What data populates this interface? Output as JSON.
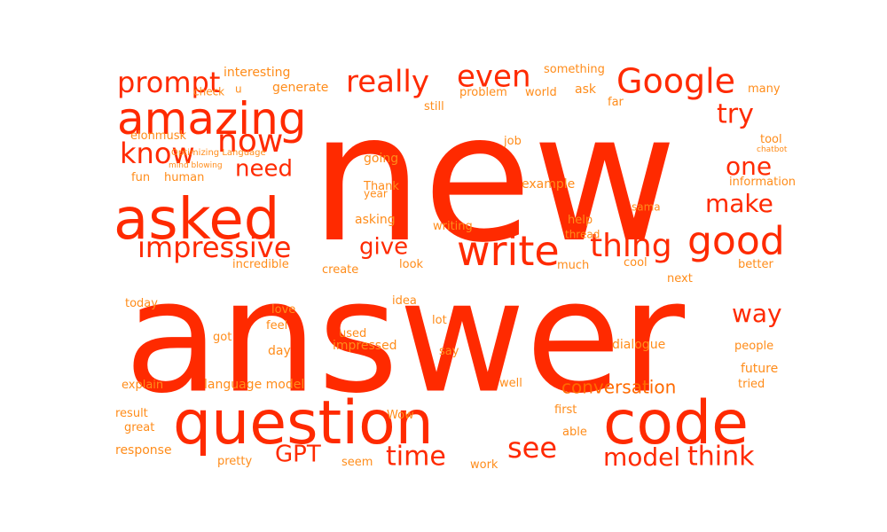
{
  "palette": {
    "primary": "#ff2a00",
    "secondary": "#ff6a00",
    "tertiary": "#ff8c1a"
  },
  "words": [
    {
      "text": "new",
      "tier": "primary"
    },
    {
      "text": "answer",
      "tier": "primary"
    },
    {
      "text": "question",
      "tier": "primary"
    },
    {
      "text": "code",
      "tier": "primary"
    },
    {
      "text": "asked",
      "tier": "primary"
    },
    {
      "text": "amazing",
      "tier": "primary"
    },
    {
      "text": "write",
      "tier": "primary"
    },
    {
      "text": "good",
      "tier": "primary"
    },
    {
      "text": "Google",
      "tier": "primary"
    },
    {
      "text": "really",
      "tier": "primary"
    },
    {
      "text": "even",
      "tier": "primary"
    },
    {
      "text": "prompt",
      "tier": "primary"
    },
    {
      "text": "impressive",
      "tier": "primary"
    },
    {
      "text": "thing",
      "tier": "primary"
    },
    {
      "text": "now",
      "tier": "primary"
    },
    {
      "text": "know",
      "tier": "primary"
    },
    {
      "text": "try",
      "tier": "primary"
    },
    {
      "text": "one",
      "tier": "primary"
    },
    {
      "text": "make",
      "tier": "primary"
    },
    {
      "text": "need",
      "tier": "primary"
    },
    {
      "text": "give",
      "tier": "primary"
    },
    {
      "text": "way",
      "tier": "primary"
    },
    {
      "text": "see",
      "tier": "primary"
    },
    {
      "text": "time",
      "tier": "primary"
    },
    {
      "text": "model",
      "tier": "primary"
    },
    {
      "text": "think",
      "tier": "primary"
    },
    {
      "text": "GPT",
      "tier": "primary"
    },
    {
      "text": "conversation",
      "tier": "secondary"
    },
    {
      "text": "interesting",
      "tier": "tertiary"
    },
    {
      "text": "something",
      "tier": "tertiary"
    },
    {
      "text": "check",
      "tier": "tertiary"
    },
    {
      "text": "u",
      "tier": "tertiary"
    },
    {
      "text": "generate",
      "tier": "tertiary"
    },
    {
      "text": "problem",
      "tier": "tertiary"
    },
    {
      "text": "world",
      "tier": "tertiary"
    },
    {
      "text": "ask",
      "tier": "tertiary"
    },
    {
      "text": "many",
      "tier": "tertiary"
    },
    {
      "text": "still",
      "tier": "tertiary"
    },
    {
      "text": "far",
      "tier": "tertiary"
    },
    {
      "text": "elonmusk",
      "tier": "tertiary"
    },
    {
      "text": "Optimizing Language",
      "tier": "tertiary"
    },
    {
      "text": "mind blowing",
      "tier": "tertiary"
    },
    {
      "text": "job",
      "tier": "tertiary"
    },
    {
      "text": "tool",
      "tier": "tertiary"
    },
    {
      "text": "chatbot",
      "tier": "tertiary"
    },
    {
      "text": "fun",
      "tier": "tertiary"
    },
    {
      "text": "human",
      "tier": "tertiary"
    },
    {
      "text": "going",
      "tier": "tertiary"
    },
    {
      "text": "Thank",
      "tier": "tertiary"
    },
    {
      "text": "year",
      "tier": "tertiary"
    },
    {
      "text": "example",
      "tier": "tertiary"
    },
    {
      "text": "information",
      "tier": "tertiary"
    },
    {
      "text": "sama",
      "tier": "tertiary"
    },
    {
      "text": "asking",
      "tier": "tertiary"
    },
    {
      "text": "writing",
      "tier": "tertiary"
    },
    {
      "text": "help",
      "tier": "tertiary"
    },
    {
      "text": "thread",
      "tier": "tertiary"
    },
    {
      "text": "incredible",
      "tier": "tertiary"
    },
    {
      "text": "create",
      "tier": "tertiary"
    },
    {
      "text": "look",
      "tier": "tertiary"
    },
    {
      "text": "much",
      "tier": "tertiary"
    },
    {
      "text": "cool",
      "tier": "tertiary"
    },
    {
      "text": "better",
      "tier": "tertiary"
    },
    {
      "text": "next",
      "tier": "tertiary"
    },
    {
      "text": "today",
      "tier": "tertiary"
    },
    {
      "text": "idea",
      "tier": "tertiary"
    },
    {
      "text": "love",
      "tier": "tertiary"
    },
    {
      "text": "feel",
      "tier": "tertiary"
    },
    {
      "text": "lot",
      "tier": "tertiary"
    },
    {
      "text": "got",
      "tier": "tertiary"
    },
    {
      "text": "used",
      "tier": "tertiary"
    },
    {
      "text": "impressed",
      "tier": "tertiary"
    },
    {
      "text": "say",
      "tier": "tertiary"
    },
    {
      "text": "dialogue",
      "tier": "tertiary"
    },
    {
      "text": "people",
      "tier": "tertiary"
    },
    {
      "text": "day",
      "tier": "tertiary"
    },
    {
      "text": "future",
      "tier": "tertiary"
    },
    {
      "text": "explain",
      "tier": "tertiary"
    },
    {
      "text": "language model",
      "tier": "tertiary"
    },
    {
      "text": "well",
      "tier": "tertiary"
    },
    {
      "text": "tried",
      "tier": "tertiary"
    },
    {
      "text": "result",
      "tier": "tertiary"
    },
    {
      "text": "Wow",
      "tier": "tertiary"
    },
    {
      "text": "first",
      "tier": "tertiary"
    },
    {
      "text": "great",
      "tier": "tertiary"
    },
    {
      "text": "able",
      "tier": "tertiary"
    },
    {
      "text": "response",
      "tier": "tertiary"
    },
    {
      "text": "pretty",
      "tier": "tertiary"
    },
    {
      "text": "seem",
      "tier": "tertiary"
    },
    {
      "text": "work",
      "tier": "tertiary"
    }
  ]
}
